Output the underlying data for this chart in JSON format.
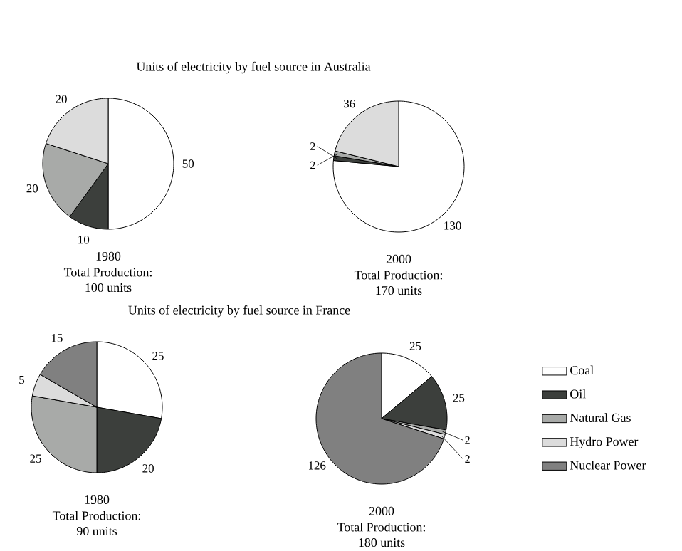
{
  "chart_data": [
    {
      "type": "pie",
      "title": "Units of electricity by fuel source in Australia",
      "xlabel": "1980",
      "annotations": [
        "Total Production:",
        "100 units"
      ],
      "categories": [
        null,
        null,
        null,
        null
      ],
      "values": [
        50,
        10,
        20,
        20
      ],
      "colors": [
        "#ffffff",
        "#3c3f3c",
        "#a8aaa8",
        "#dcdcdc"
      ],
      "data_labels": true
    },
    {
      "type": "pie",
      "xlabel": "2000",
      "annotations": [
        "Total Production:",
        "170 units"
      ],
      "categories": [
        null,
        null,
        null,
        null
      ],
      "values": [
        130,
        2,
        2,
        36
      ],
      "colors": [
        "#ffffff",
        "#3c3f3c",
        "#a8aaa8",
        "#dcdcdc"
      ],
      "data_labels": true
    },
    {
      "type": "pie",
      "title": "Units of electricity by fuel source in France",
      "xlabel": "1980",
      "annotations": [
        "Total Production:",
        "90 units"
      ],
      "categories": [
        null,
        null,
        null,
        null,
        null
      ],
      "values": [
        25,
        20,
        25,
        5,
        15
      ],
      "colors": [
        "#ffffff",
        "#3c3f3c",
        "#a8aaa8",
        "#dcdcdc",
        "#808080"
      ],
      "data_labels": true
    },
    {
      "type": "pie",
      "xlabel": "2000",
      "annotations": [
        "Total Production:",
        "180 units"
      ],
      "categories": [
        "Coal",
        "Oil",
        "Natural Gas",
        "Hydro Power",
        "Nuclear Power"
      ],
      "values": [
        25,
        25,
        2,
        2,
        126
      ],
      "colors": [
        "#ffffff",
        "#3c3f3c",
        "#a8aaa8",
        "#dcdcdc",
        "#808080"
      ],
      "data_labels": true,
      "legend": "right"
    }
  ]
}
